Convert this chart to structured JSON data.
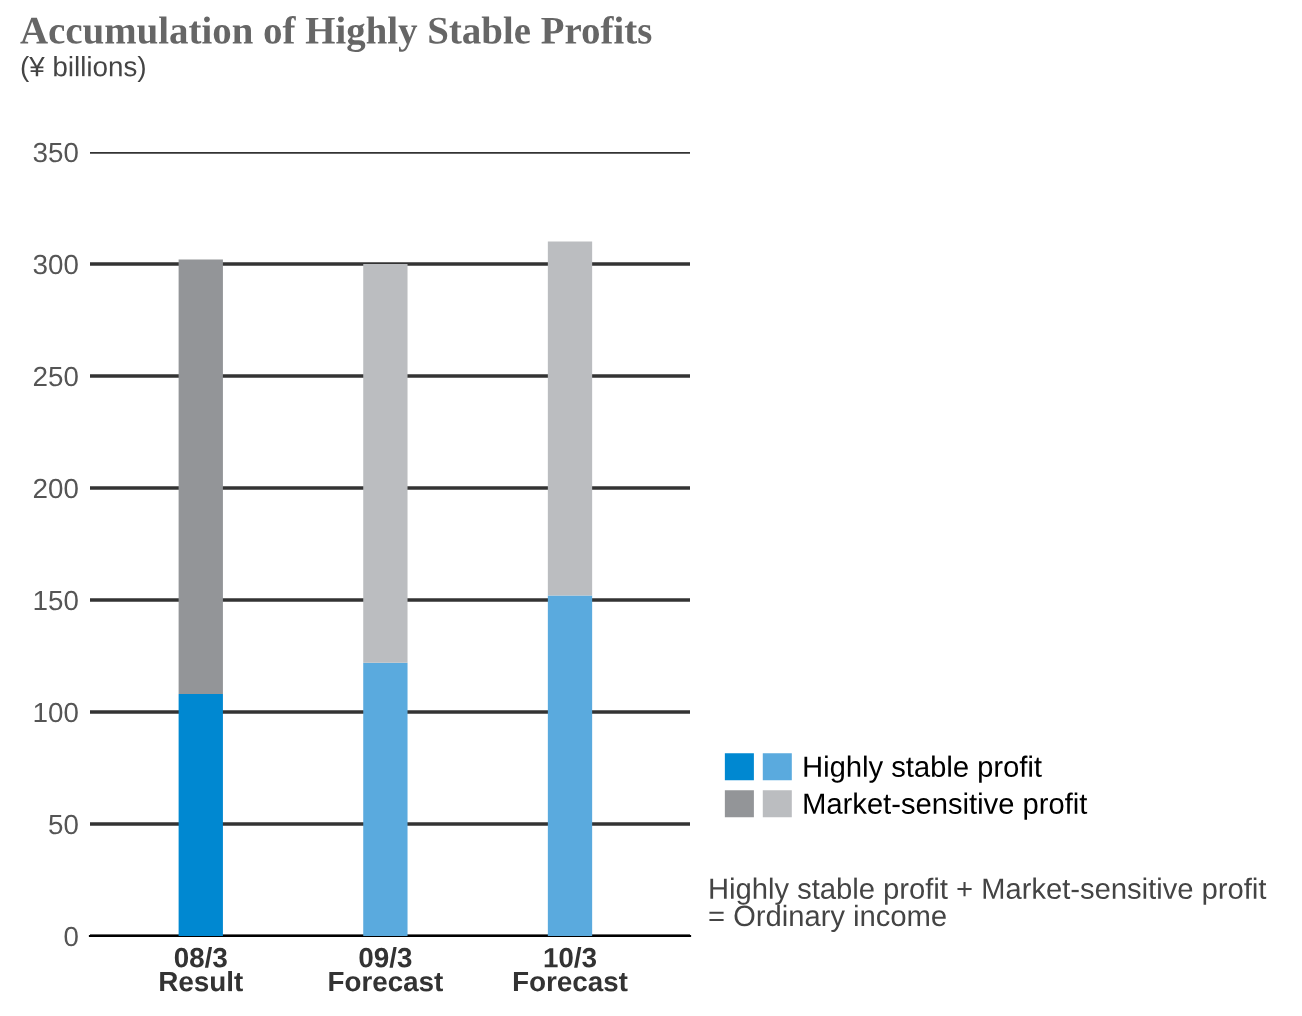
{
  "chart_data": {
    "type": "bar",
    "stacked": true,
    "title": "Accumulation of Highly Stable Profits",
    "subtitle": "(¥ billions)",
    "categories": [
      "08/3\nResult",
      "09/3\nForecast",
      "10/3\nForecast"
    ],
    "series": [
      {
        "name": "Highly stable profit",
        "colors": [
          "#0088d1",
          "#5aaade",
          "#5aaade"
        ],
        "values": [
          108,
          122,
          152
        ]
      },
      {
        "name": "Market-sensitive profit",
        "colors": [
          "#939598",
          "#bbbdc0",
          "#bbbdc0"
        ],
        "values": [
          194,
          178,
          158
        ]
      }
    ],
    "ylim": [
      0,
      350
    ],
    "yticks": [
      0,
      50,
      100,
      150,
      200,
      250,
      300,
      350
    ],
    "grid": "y",
    "legend": "bottom right",
    "annotations": [
      "Highly stable profit + Market-sensitive profit\n= Ordinary income"
    ]
  }
}
